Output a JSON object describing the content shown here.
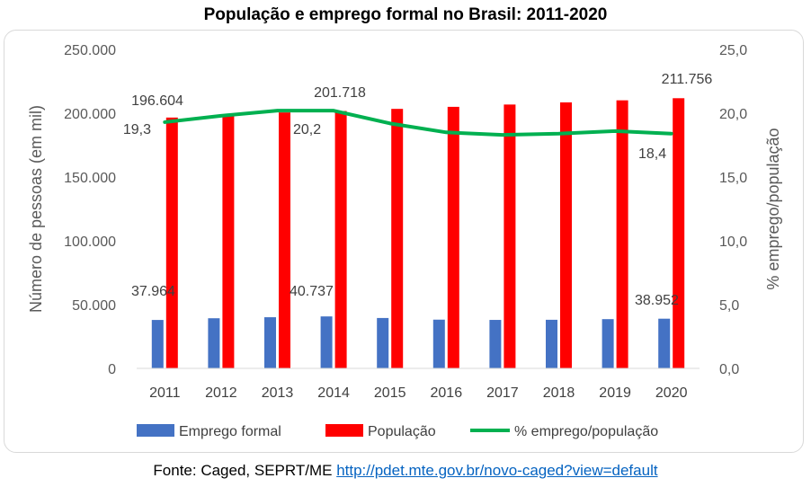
{
  "chart_data": {
    "type": "bar",
    "title": "População e emprego formal no Brasil: 2011-2020",
    "categories": [
      "2011",
      "2012",
      "2013",
      "2014",
      "2015",
      "2016",
      "2017",
      "2018",
      "2019",
      "2020"
    ],
    "series": [
      {
        "name": "Emprego formal",
        "type": "bar",
        "axis": "left",
        "color": "#4472c4",
        "values": [
          37964,
          39300,
          40100,
          40737,
          39500,
          38200,
          38000,
          38100,
          38600,
          38952
        ]
      },
      {
        "name": "População",
        "type": "bar",
        "axis": "left",
        "color": "#ff0000",
        "values": [
          196604,
          198600,
          200600,
          201718,
          203400,
          205000,
          206800,
          208500,
          210100,
          211756
        ]
      },
      {
        "name": "% emprego/população",
        "type": "line",
        "axis": "right",
        "color": "#00b050",
        "values": [
          19.3,
          19.8,
          20.2,
          20.2,
          19.2,
          18.5,
          18.3,
          18.4,
          18.6,
          18.4
        ]
      }
    ],
    "ylabel": "Número de pessoas (em mil)",
    "y2label": "% emprego/população",
    "ylim": [
      0,
      250000
    ],
    "y2lim": [
      0,
      25
    ],
    "yticks": [
      "0",
      "50.000",
      "100.000",
      "150.000",
      "200.000",
      "250.000"
    ],
    "y2ticks": [
      "0,0",
      "5,0",
      "10,0",
      "15,0",
      "20,0",
      "25,0"
    ],
    "data_labels": [
      {
        "series": "População",
        "index": 0,
        "text": "196.604"
      },
      {
        "series": "População",
        "index": 3,
        "text": "201.718"
      },
      {
        "series": "População",
        "index": 9,
        "text": "211.756"
      },
      {
        "series": "Emprego formal",
        "index": 0,
        "text": "37.964"
      },
      {
        "series": "Emprego formal",
        "index": 3,
        "text": "40.737"
      },
      {
        "series": "Emprego formal",
        "index": 9,
        "text": "38.952"
      },
      {
        "series": "% emprego/população",
        "index": 0,
        "text": "19,3"
      },
      {
        "series": "% emprego/população",
        "index": 3,
        "text": "20,2"
      },
      {
        "series": "% emprego/população",
        "index": 9,
        "text": "18,4"
      }
    ],
    "grid": false,
    "legend": "bottom"
  },
  "source": {
    "prefix": "Fonte: Caged, SEPRT/ME ",
    "link_text": "http://pdet.mte.gov.br/novo-caged?view=default"
  }
}
